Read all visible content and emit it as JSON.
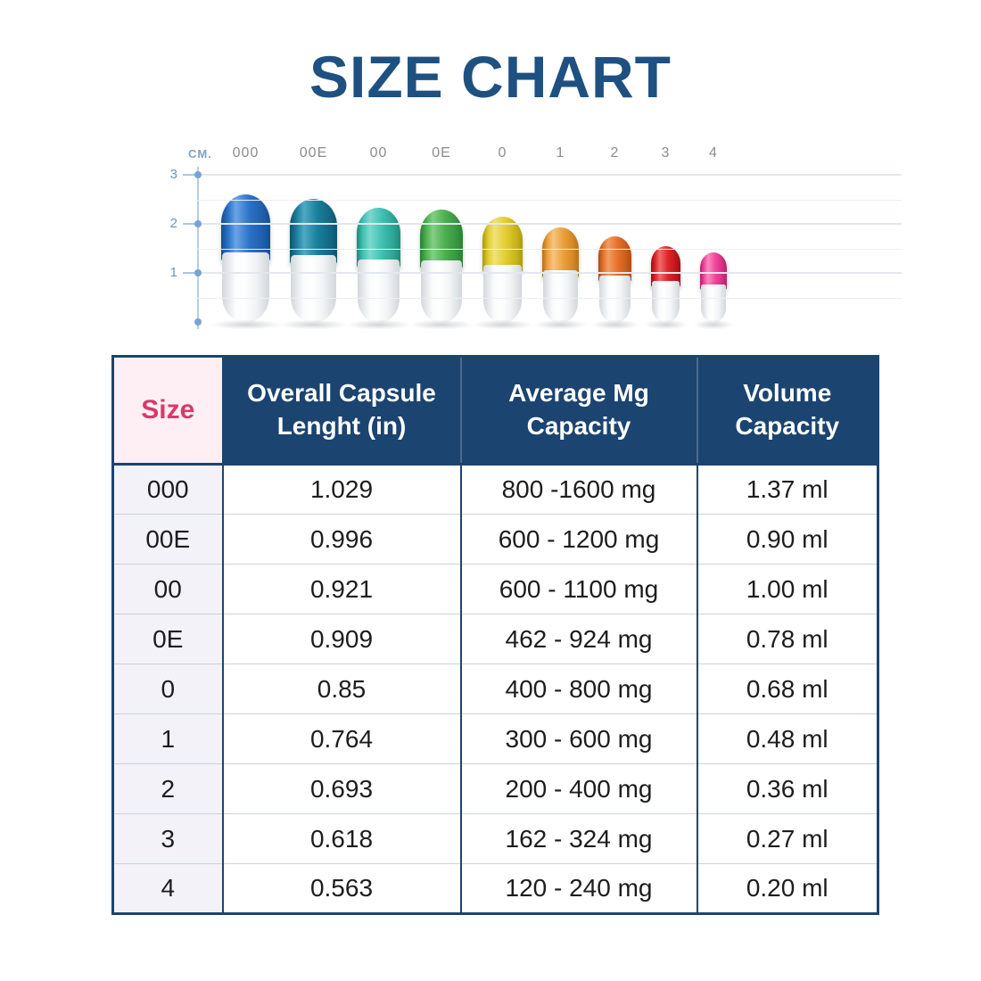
{
  "title": "SIZE CHART",
  "diagram": {
    "axis_unit": "CM.",
    "ticks": [
      3,
      2,
      1
    ],
    "capsules": [
      {
        "label": "000",
        "height_cm": 2.61,
        "light": "#6aa4e8",
        "base": "#2b72c6",
        "dark": "#1a55a0"
      },
      {
        "label": "00E",
        "height_cm": 2.53,
        "light": "#4fa9c2",
        "base": "#1a7f9e",
        "dark": "#0f5e78"
      },
      {
        "label": "00",
        "height_cm": 2.34,
        "light": "#7cd8cd",
        "base": "#3fc0b2",
        "dark": "#249787"
      },
      {
        "label": "0E",
        "height_cm": 2.31,
        "light": "#83cf85",
        "base": "#4cb050",
        "dark": "#2f8c36"
      },
      {
        "label": "0",
        "height_cm": 2.16,
        "light": "#efe27a",
        "base": "#e2cd2e",
        "dark": "#bba712"
      },
      {
        "label": "1",
        "height_cm": 1.94,
        "light": "#f5c47e",
        "base": "#eca03c",
        "dark": "#c97c1b"
      },
      {
        "label": "2",
        "height_cm": 1.76,
        "light": "#f29d63",
        "base": "#e7702a",
        "dark": "#bf5414"
      },
      {
        "label": "3",
        "height_cm": 1.57,
        "light": "#ef6b6a",
        "base": "#e02528",
        "dark": "#b01215"
      },
      {
        "label": "4",
        "height_cm": 1.43,
        "light": "#f88ac1",
        "base": "#f2459c",
        "dark": "#c92577"
      }
    ]
  },
  "table": {
    "headers": [
      "Size",
      "Overall Capsule Lenght (in)",
      "Average Mg Capacity",
      "Volume Capacity"
    ],
    "rows": [
      [
        "000",
        "1.029",
        "800 -1600 mg",
        "1.37 ml"
      ],
      [
        "00E",
        "0.996",
        "600 - 1200 mg",
        "0.90 ml"
      ],
      [
        "00",
        "0.921",
        "600 - 1100 mg",
        "1.00 ml"
      ],
      [
        "0E",
        "0.909",
        "462 - 924 mg",
        "0.78 ml"
      ],
      [
        "0",
        "0.85",
        "400 - 800 mg",
        "0.68 ml"
      ],
      [
        "1",
        "0.764",
        "300 - 600 mg",
        "0.48 ml"
      ],
      [
        "2",
        "0.693",
        "200 - 400 mg",
        "0.36 ml"
      ],
      [
        "3",
        "0.618",
        "162 - 324 mg",
        "0.27 ml"
      ],
      [
        "4",
        "0.563",
        "120 - 240 mg",
        "0.20 ml"
      ]
    ]
  },
  "colors": {
    "title_blue": "#1e5181",
    "table_navy": "#1b4470",
    "size_header_bg": "#fdeff3",
    "size_header_text": "#d8396a",
    "size_column_bg": "#f2f2f8",
    "axis_blue": "#6d94b5",
    "label_gray": "#8c8c8c"
  },
  "chart_data": [
    {
      "type": "bar",
      "title": "Capsule sizes drawn against CM. scale",
      "categories": [
        "000",
        "00E",
        "00",
        "0E",
        "0",
        "1",
        "2",
        "3",
        "4"
      ],
      "values": [
        2.61,
        2.53,
        2.34,
        2.31,
        2.16,
        1.94,
        1.76,
        1.57,
        1.43
      ],
      "xlabel": "",
      "ylabel": "CM.",
      "ylim": [
        0,
        3
      ],
      "yticks": [
        1,
        2,
        3
      ],
      "grid": true,
      "colors": [
        "#2b72c6",
        "#1a7f9e",
        "#3fc0b2",
        "#4cb050",
        "#e2cd2e",
        "#eca03c",
        "#e7702a",
        "#e02528",
        "#f2459c"
      ]
    },
    {
      "type": "table",
      "headers": [
        "Size",
        "Overall Capsule Lenght (in)",
        "Average Mg Capacity",
        "Volume Capacity"
      ],
      "rows": [
        [
          "000",
          "1.029",
          "800 -1600 mg",
          "1.37 ml"
        ],
        [
          "00E",
          "0.996",
          "600 - 1200 mg",
          "0.90 ml"
        ],
        [
          "00",
          "0.921",
          "600 - 1100 mg",
          "1.00 ml"
        ],
        [
          "0E",
          "0.909",
          "462 - 924 mg",
          "0.78 ml"
        ],
        [
          "0",
          "0.85",
          "400 - 800 mg",
          "0.68 ml"
        ],
        [
          "1",
          "0.764",
          "300 - 600 mg",
          "0.48 ml"
        ],
        [
          "2",
          "0.693",
          "200 - 400 mg",
          "0.36 ml"
        ],
        [
          "3",
          "0.618",
          "162 - 324 mg",
          "0.27 ml"
        ],
        [
          "4",
          "0.563",
          "120 - 240 mg",
          "0.20 ml"
        ]
      ]
    }
  ]
}
